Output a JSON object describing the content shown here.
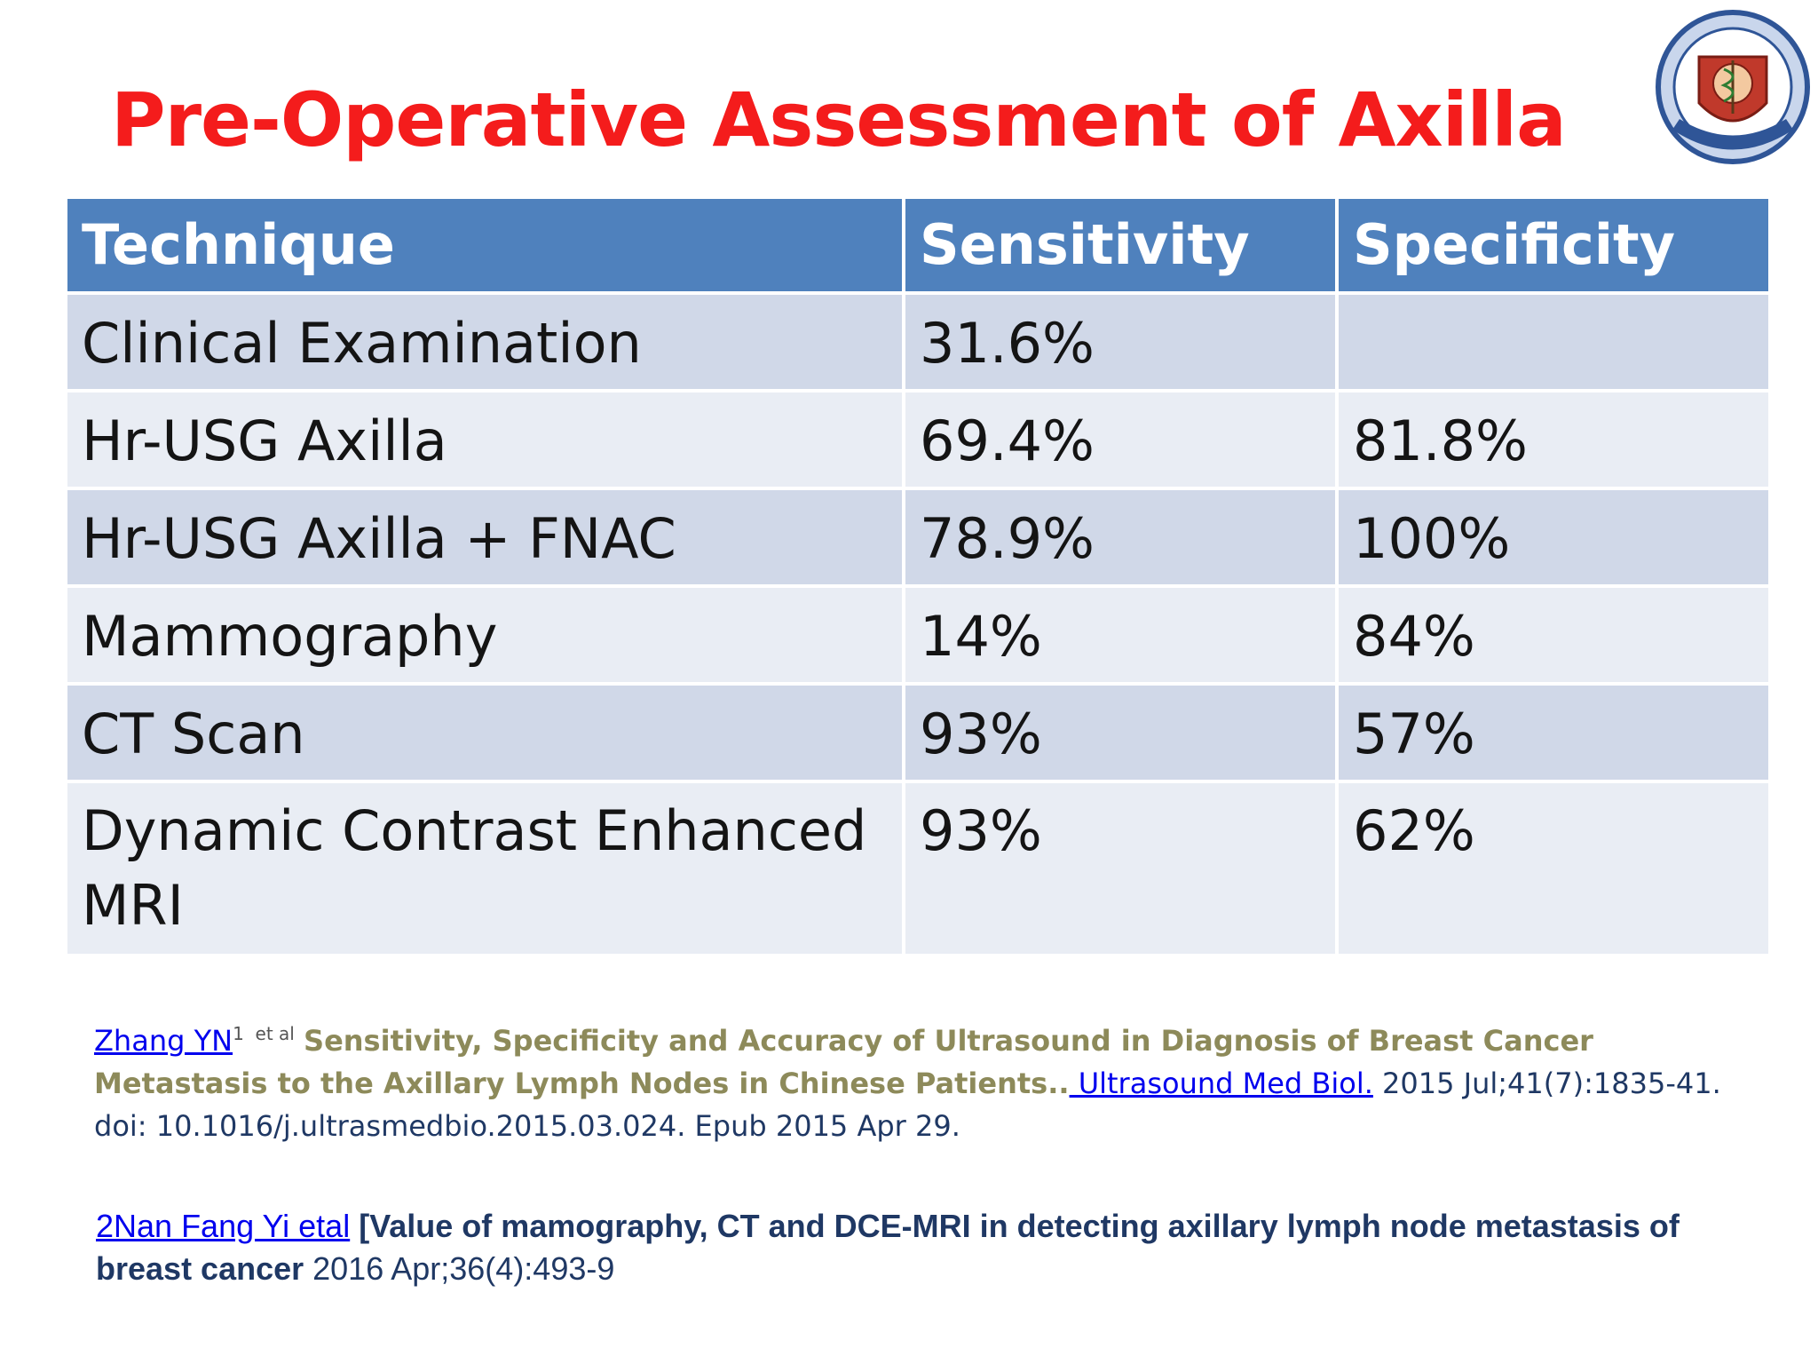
{
  "slide": {
    "title": "Pre-Operative Assessment of Axilla",
    "logo_icon": "institution-emblem",
    "accent_color": "#f41c1c",
    "header_color": "#4f81bd"
  },
  "table": {
    "headers": [
      "Technique",
      "Sensitivity",
      "Specificity"
    ],
    "rows": [
      {
        "technique": "Clinical Examination",
        "sensitivity": "31.6%",
        "specificity": ""
      },
      {
        "technique": "Hr-USG Axilla",
        "sensitivity": "69.4%",
        "specificity": "81.8%"
      },
      {
        "technique": "Hr-USG Axilla + FNAC",
        "sensitivity": "78.9%",
        "specificity": "100%"
      },
      {
        "technique": "Mammography",
        "sensitivity": "14%",
        "specificity": "84%"
      },
      {
        "technique": "CT Scan",
        "sensitivity": "93%",
        "specificity": "57%"
      },
      {
        "technique": "Dynamic Contrast Enhanced MRI",
        "sensitivity": "93%",
        "specificity": "62%"
      }
    ]
  },
  "references": {
    "ref1": {
      "author_link": "Zhang YN",
      "superscript": "1",
      "etal": "et al",
      "title": "Sensitivity, Specificity and Accuracy of Ultrasound in Diagnosis of Breast Cancer Metastasis to the Axillary Lymph Nodes in Chinese Patients..",
      "journal_link": " Ultrasound Med Biol.",
      "citation": " 2015 Jul;41(7):1835-41. doi: 10.1016/j.ultrasmedbio.2015.03.024. Epub 2015 Apr 29."
    },
    "ref2": {
      "author_link": "2Nan Fang Yi etal",
      "title": " [Value of mamography, CT and DCE-MRI in detecting axillary lymph node metastasis of breast cancer",
      "citation": " 2016 Apr;36(4):493-9"
    }
  }
}
